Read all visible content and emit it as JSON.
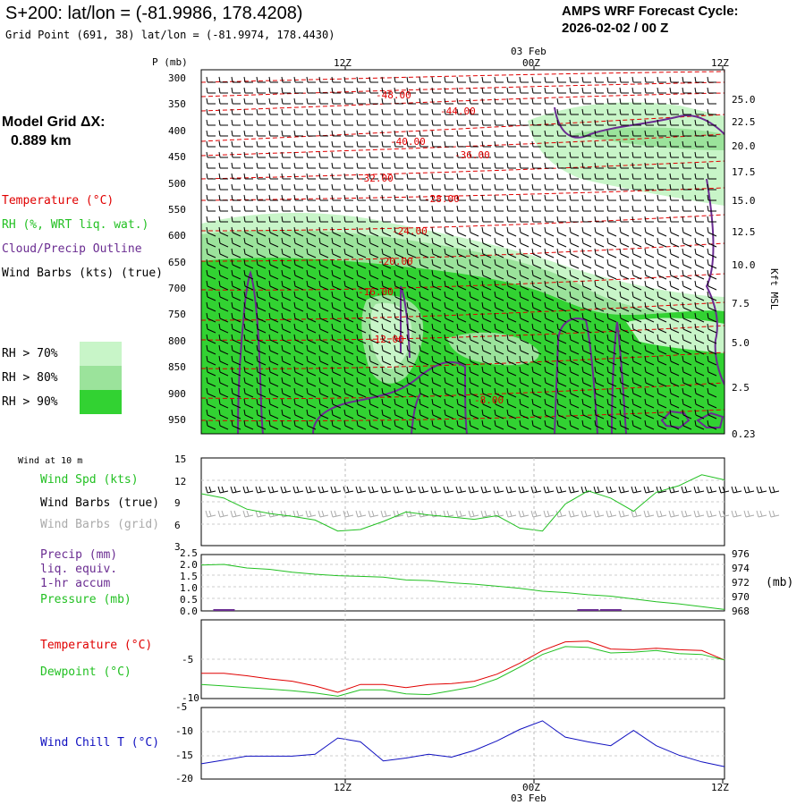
{
  "header": {
    "title": "S+200:  lat/lon = (-81.9986, 178.4208)",
    "subtitle": "Grid Point (691, 38) lat/lon = (-81.9974, 178.4430)",
    "cycle_line1": "AMPS WRF Forecast Cycle:",
    "cycle_line2": "2026-02-02 / 00  Z"
  },
  "top_axis": {
    "tick_labels": [
      "12Z",
      "00Z",
      "12Z"
    ],
    "date_label": "03 Feb"
  },
  "bottom_axis": {
    "tick_labels": [
      "12Z",
      "00Z",
      "12Z"
    ],
    "date_label": "03 Feb"
  },
  "left_panel": {
    "grid_line1": "Model Grid ΔX:",
    "grid_line2": "0.889 km",
    "legend_temperature": "Temperature (°C)",
    "legend_rh": "RH (%, WRT liq. wat.)",
    "legend_cloud": "Cloud/Precip Outline",
    "legend_wind": "Wind Barbs (kts) (true)",
    "rh_keys": [
      "RH > 70%",
      "RH > 80%",
      "RH > 90%"
    ]
  },
  "colors": {
    "rh70": "#c8f5c8",
    "rh80": "#9be39b",
    "rh90": "#32d232",
    "temperature": "#e00000",
    "dewpoint": "#22c022",
    "cloud": "#6a2c91",
    "windchill": "#1010c0",
    "grey": "#aaaaaa"
  },
  "sfc_labels": {
    "wind_title": "Wind at 10 m",
    "wind_spd": "Wind Spd (kts)",
    "barbs_true": "Wind Barbs (true)",
    "barbs_grid": "Wind Barbs (grid)",
    "precip1": "Precip (mm)",
    "precip2": "liq. equiv.",
    "precip3": "1-hr accum",
    "pressure": "Pressure (mb)",
    "pressure_unit": "(mb)",
    "temperature": "Temperature (°C)",
    "dewpoint": "Dewpoint (°C)",
    "windchill": "Wind Chill T (°C)"
  },
  "chart_data": [
    {
      "type": "heatmap",
      "name_hint": "cross-section",
      "y_left_label": "P (mb)",
      "y_right_label": "Kft MSL",
      "pressure_ticks": [
        300,
        350,
        400,
        450,
        500,
        550,
        600,
        650,
        700,
        750,
        800,
        850,
        900,
        950
      ],
      "height_ticks": [
        "25.0",
        "22.5",
        "20.0",
        "17.5",
        "15.0",
        "12.5",
        "10.0",
        "7.5",
        "5.0",
        "2.5",
        "0.23"
      ],
      "temperature_labels": [
        "-48.00",
        "-44.00",
        "-40.00",
        "-36.00",
        "-32.00",
        "-28.00",
        "-24.00",
        "-20.00",
        "-16.00",
        "-12.00",
        "-8.00"
      ]
    },
    {
      "type": "line",
      "name_hint": "wind",
      "ylim": [
        3,
        15
      ],
      "y_ticks": [
        "3",
        "6",
        "9",
        "12",
        "15"
      ],
      "series": [
        {
          "values": [
            10.1,
            9.5,
            8.0,
            7.4,
            7.0,
            6.5,
            5.0,
            5.2,
            6.3,
            7.6,
            7.2,
            6.9,
            6.6,
            7.1,
            5.4,
            5.0,
            8.7,
            10.5,
            9.5,
            7.7,
            10.3,
            11.2,
            12.7,
            12.0
          ]
        }
      ]
    },
    {
      "type": "line",
      "name_hint": "precip-pressure",
      "y_left_ticks": [
        "0.0",
        "0.5",
        "1.0",
        "1.5",
        "2.0",
        "2.5"
      ],
      "y_right_ticks": [
        "968",
        "970",
        "972",
        "974",
        "976"
      ],
      "precip_mm": [
        0,
        0.05,
        0,
        0,
        0,
        0,
        0,
        0,
        0,
        0,
        0,
        0,
        0,
        0,
        0,
        0,
        0,
        0.05,
        0.05,
        0,
        0,
        0,
        0,
        0
      ],
      "series": [
        {
          "values": [
            974.5,
            974.6,
            974.1,
            973.9,
            973.5,
            973.2,
            973.0,
            972.9,
            972.8,
            972.4,
            972.3,
            972.0,
            971.8,
            971.5,
            971.2,
            970.8,
            970.6,
            970.3,
            970.1,
            969.7,
            969.3,
            969.0,
            968.6,
            968.2
          ]
        }
      ]
    },
    {
      "type": "line",
      "name_hint": "temp-dewpoint",
      "ylim": [
        -10,
        0
      ],
      "y_ticks": [
        "-5",
        "-10"
      ],
      "series": [
        {
          "values": [
            -6.8,
            -6.8,
            -7.1,
            -7.5,
            -7.8,
            -8.4,
            -9.2,
            -8.2,
            -8.2,
            -8.6,
            -8.2,
            -8.1,
            -7.8,
            -6.9,
            -5.5,
            -3.9,
            -2.8,
            -2.7,
            -3.7,
            -3.8,
            -3.6,
            -3.8,
            -3.9,
            -5.1
          ]
        },
        {
          "values": [
            -8.2,
            -8.4,
            -8.6,
            -8.8,
            -9.0,
            -9.3,
            -9.7,
            -8.9,
            -8.9,
            -9.4,
            -9.5,
            -9.0,
            -8.5,
            -7.5,
            -6.0,
            -4.4,
            -3.4,
            -3.5,
            -4.2,
            -4.1,
            -3.9,
            -4.3,
            -4.4,
            -5.1
          ]
        }
      ]
    },
    {
      "type": "line",
      "name_hint": "windchill",
      "ylim": [
        -20,
        -5
      ],
      "y_ticks": [
        "-5",
        "-10",
        "-15",
        "-20"
      ],
      "series": [
        {
          "values": [
            -16.8,
            -16.0,
            -15.2,
            -15.2,
            -15.2,
            -14.8,
            -11.4,
            -12.2,
            -16.2,
            -15.6,
            -14.8,
            -15.4,
            -14.0,
            -12.0,
            -9.6,
            -7.8,
            -11.2,
            -12.2,
            -13.0,
            -9.8,
            -13.0,
            -15.0,
            -16.4,
            -17.4
          ]
        }
      ]
    }
  ]
}
